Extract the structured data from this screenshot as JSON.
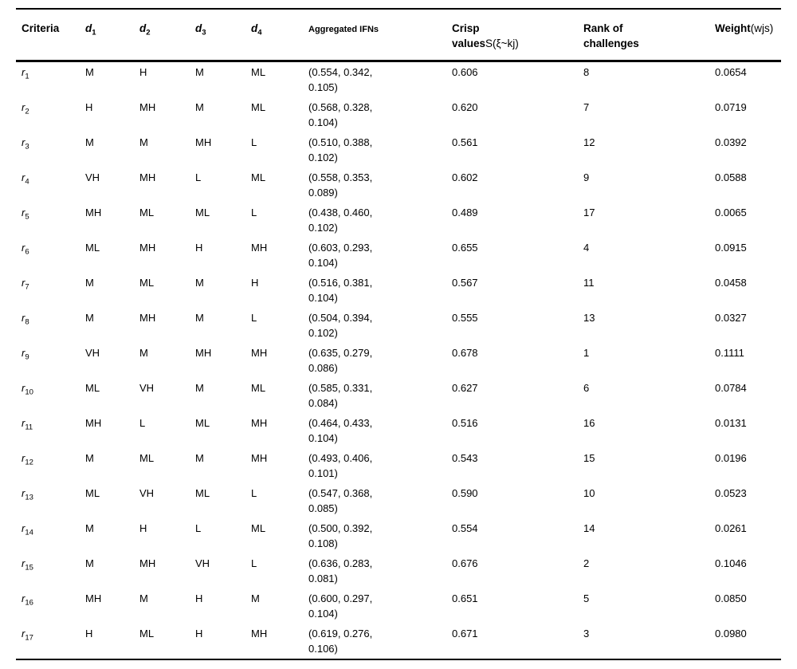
{
  "table": {
    "header": {
      "criteria": "Criteria",
      "d1": {
        "base": "d",
        "sub": "1"
      },
      "d2": {
        "base": "d",
        "sub": "2"
      },
      "d3": {
        "base": "d",
        "sub": "3"
      },
      "d4": {
        "base": "d",
        "sub": "4"
      },
      "aggregated": "Aggregated IFNs",
      "crisp_line1": "Crisp",
      "crisp_line2_bold": "values",
      "crisp_line2_regular": "S(ξ~kj)",
      "rank_line1": "Rank of",
      "rank_line2": "challenges",
      "weight_bold": "Weight",
      "weight_regular": "(wjs)"
    },
    "rows": [
      {
        "id_base": "r",
        "id_sub": "1",
        "d1": "M",
        "d2": "H",
        "d3": "M",
        "d4": "ML",
        "ifn1": "(0.554, 0.342,",
        "ifn2": "0.105)",
        "crisp": "0.606",
        "rank": "8",
        "weight": "0.0654"
      },
      {
        "id_base": "r",
        "id_sub": "2",
        "d1": "H",
        "d2": "MH",
        "d3": "M",
        "d4": "ML",
        "ifn1": "(0.568, 0.328,",
        "ifn2": "0.104)",
        "crisp": "0.620",
        "rank": "7",
        "weight": "0.0719"
      },
      {
        "id_base": "r",
        "id_sub": "3",
        "d1": "M",
        "d2": "M",
        "d3": "MH",
        "d4": "L",
        "ifn1": "(0.510, 0.388,",
        "ifn2": "0.102)",
        "crisp": "0.561",
        "rank": "12",
        "weight": "0.0392"
      },
      {
        "id_base": "r",
        "id_sub": "4",
        "d1": "VH",
        "d2": "MH",
        "d3": "L",
        "d4": "ML",
        "ifn1": "(0.558, 0.353,",
        "ifn2": "0.089)",
        "crisp": "0.602",
        "rank": "9",
        "weight": "0.0588"
      },
      {
        "id_base": "r",
        "id_sub": "5",
        "d1": "MH",
        "d2": "ML",
        "d3": "ML",
        "d4": "L",
        "ifn1": "(0.438, 0.460,",
        "ifn2": "0.102)",
        "crisp": "0.489",
        "rank": "17",
        "weight": "0.0065"
      },
      {
        "id_base": "r",
        "id_sub": "6",
        "d1": "ML",
        "d2": "MH",
        "d3": "H",
        "d4": "MH",
        "ifn1": "(0.603, 0.293,",
        "ifn2": "0.104)",
        "crisp": "0.655",
        "rank": "4",
        "weight": "0.0915"
      },
      {
        "id_base": "r",
        "id_sub": "7",
        "d1": "M",
        "d2": "ML",
        "d3": "M",
        "d4": "H",
        "ifn1": "(0.516, 0.381,",
        "ifn2": "0.104)",
        "crisp": "0.567",
        "rank": "11",
        "weight": "0.0458"
      },
      {
        "id_base": "r",
        "id_sub": "8",
        "d1": "M",
        "d2": "MH",
        "d3": "M",
        "d4": "L",
        "ifn1": "(0.504, 0.394,",
        "ifn2": "0.102)",
        "crisp": "0.555",
        "rank": "13",
        "weight": "0.0327"
      },
      {
        "id_base": "r",
        "id_sub": "9",
        "d1": "VH",
        "d2": "M",
        "d3": "MH",
        "d4": "MH",
        "ifn1": "(0.635, 0.279,",
        "ifn2": "0.086)",
        "crisp": "0.678",
        "rank": "1",
        "weight": "0.1111"
      },
      {
        "id_base": "r",
        "id_sub": "10",
        "d1": "ML",
        "d2": "VH",
        "d3": "M",
        "d4": "ML",
        "ifn1": "(0.585, 0.331,",
        "ifn2": "0.084)",
        "crisp": "0.627",
        "rank": "6",
        "weight": "0.0784"
      },
      {
        "id_base": "r",
        "id_sub": "11",
        "d1": "MH",
        "d2": "L",
        "d3": "ML",
        "d4": "MH",
        "ifn1": "(0.464, 0.433,",
        "ifn2": "0.104)",
        "crisp": "0.516",
        "rank": "16",
        "weight": "0.0131"
      },
      {
        "id_base": "r",
        "id_sub": "12",
        "d1": "M",
        "d2": "ML",
        "d3": "M",
        "d4": "MH",
        "ifn1": "(0.493, 0.406,",
        "ifn2": "0.101)",
        "crisp": "0.543",
        "rank": "15",
        "weight": "0.0196"
      },
      {
        "id_base": "r",
        "id_sub": "13",
        "d1": "ML",
        "d2": "VH",
        "d3": "ML",
        "d4": "L",
        "ifn1": "(0.547, 0.368,",
        "ifn2": "0.085)",
        "crisp": "0.590",
        "rank": "10",
        "weight": "0.0523"
      },
      {
        "id_base": "r",
        "id_sub": "14",
        "d1": "M",
        "d2": "H",
        "d3": "L",
        "d4": "ML",
        "ifn1": "(0.500, 0.392,",
        "ifn2": "0.108)",
        "crisp": "0.554",
        "rank": "14",
        "weight": "0.0261"
      },
      {
        "id_base": "r",
        "id_sub": "15",
        "d1": "M",
        "d2": "MH",
        "d3": "VH",
        "d4": "L",
        "ifn1": "(0.636, 0.283,",
        "ifn2": "0.081)",
        "crisp": "0.676",
        "rank": "2",
        "weight": "0.1046"
      },
      {
        "id_base": "r",
        "id_sub": "16",
        "d1": "MH",
        "d2": "M",
        "d3": "H",
        "d4": "M",
        "ifn1": "(0.600, 0.297,",
        "ifn2": "0.104)",
        "crisp": "0.651",
        "rank": "5",
        "weight": "0.0850"
      },
      {
        "id_base": "r",
        "id_sub": "17",
        "d1": "H",
        "d2": "ML",
        "d3": "H",
        "d4": "MH",
        "ifn1": "(0.619, 0.276,",
        "ifn2": "0.106)",
        "crisp": "0.671",
        "rank": "3",
        "weight": "0.0980"
      }
    ]
  }
}
